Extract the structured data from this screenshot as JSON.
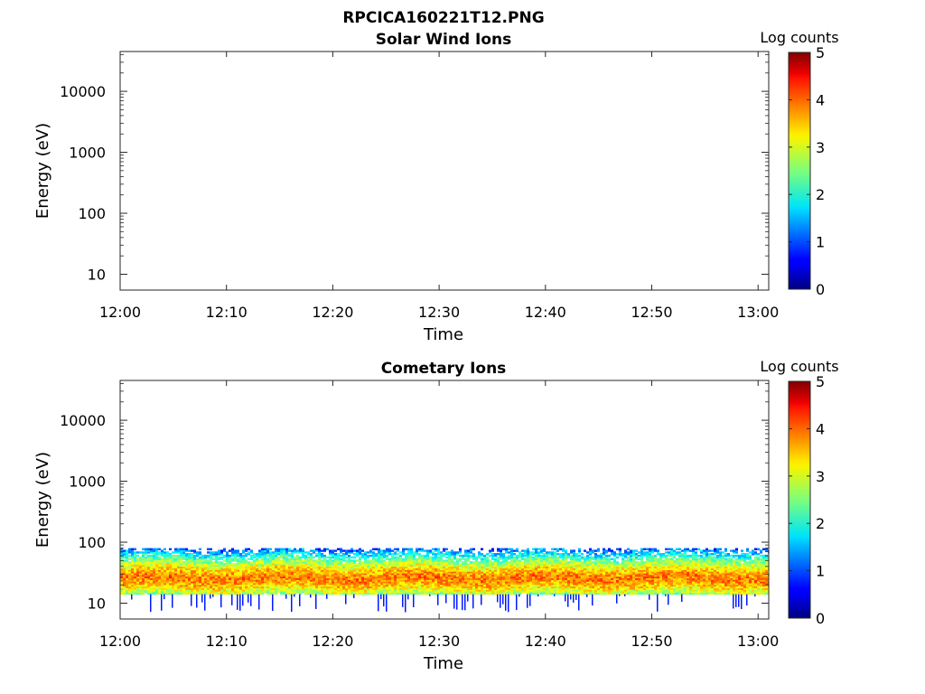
{
  "figure": {
    "title": "RPCICA160221T12.PNG"
  },
  "colorbar": {
    "label": "Log counts",
    "range": [
      0,
      5
    ],
    "ticks": [
      "0",
      "1",
      "2",
      "3",
      "4",
      "5"
    ],
    "colormap": "jet"
  },
  "chart_data": [
    {
      "type": "heatmap",
      "title": "Solar Wind Ions",
      "xlabel": "Time",
      "ylabel": "Energy (eV)",
      "x_ticks": [
        "12:00",
        "12:10",
        "12:20",
        "12:30",
        "12:40",
        "12:50",
        "13:00"
      ],
      "xlim": [
        "12:00",
        "13:01"
      ],
      "y_scale": "log",
      "y_ticks": [
        "10",
        "100",
        "1000",
        "10000"
      ],
      "ylim": [
        5.5,
        45000
      ],
      "data": "empty — no counts in displayed range",
      "zlabel": "Log counts",
      "zlim": [
        0,
        5
      ]
    },
    {
      "type": "heatmap",
      "title": "Cometary Ions",
      "xlabel": "Time",
      "ylabel": "Energy (eV)",
      "x_ticks": [
        "12:00",
        "12:10",
        "12:20",
        "12:30",
        "12:40",
        "12:50",
        "13:00"
      ],
      "xlim": [
        "12:00",
        "13:01"
      ],
      "y_scale": "log",
      "y_ticks": [
        "10",
        "100",
        "1000",
        "10000"
      ],
      "ylim": [
        5.5,
        45000
      ],
      "band": {
        "energy_min_eV": 14,
        "energy_max_eV": 80,
        "peak_energy_eV": 26,
        "peak_log_counts": 3.8,
        "edge_log_counts": 1.0,
        "sparse_tail_min_eV": 7
      },
      "zlabel": "Log counts",
      "zlim": [
        0,
        5
      ]
    }
  ]
}
